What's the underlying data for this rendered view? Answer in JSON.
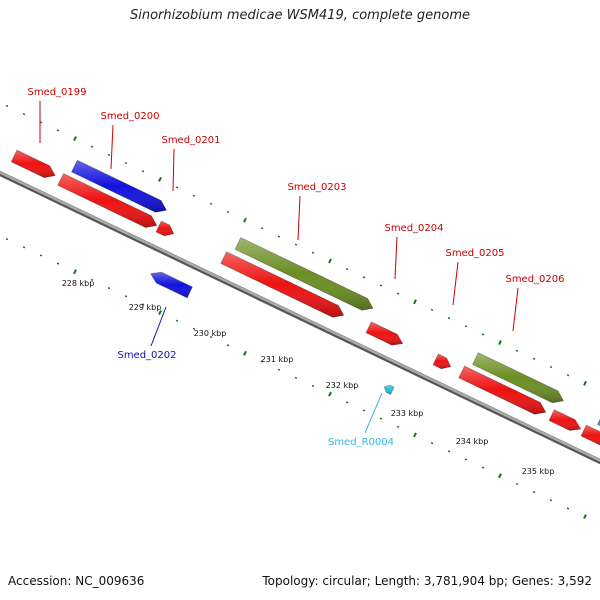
{
  "title": "Sinorhizobium medicae WSM419, complete genome",
  "footer": {
    "accession": "Accession: NC_009636",
    "summary": "Topology: circular; Length: 3,781,904 bp; Genes: 3,592"
  },
  "colors": {
    "cds": "#ee1111",
    "blue_feature": "#1111dd",
    "olive_feature": "#6b8e23",
    "rna": "#22bbdd",
    "backbone": "#888888",
    "tick": "#117711",
    "extra_feature": "#5588bb"
  },
  "scale_labels": [
    "228 kbp",
    "229 kbp",
    "230 kbp",
    "231 kbp",
    "232 kbp",
    "233 kbp",
    "234 kbp",
    "235 kbp"
  ],
  "genes": [
    {
      "label": "Smed_0199",
      "color": "#cc0000"
    },
    {
      "label": "Smed_0200",
      "color": "#cc0000"
    },
    {
      "label": "Smed_0201",
      "color": "#cc0000"
    },
    {
      "label": "Smed_0203",
      "color": "#cc0000"
    },
    {
      "label": "Smed_0204",
      "color": "#cc0000"
    },
    {
      "label": "Smed_0205",
      "color": "#cc0000"
    },
    {
      "label": "Smed_0206",
      "color": "#cc0000"
    },
    {
      "label": "Smed_0202",
      "color": "#1111aa"
    },
    {
      "label": "Smed_R0004",
      "color": "#33bbdd"
    }
  ]
}
